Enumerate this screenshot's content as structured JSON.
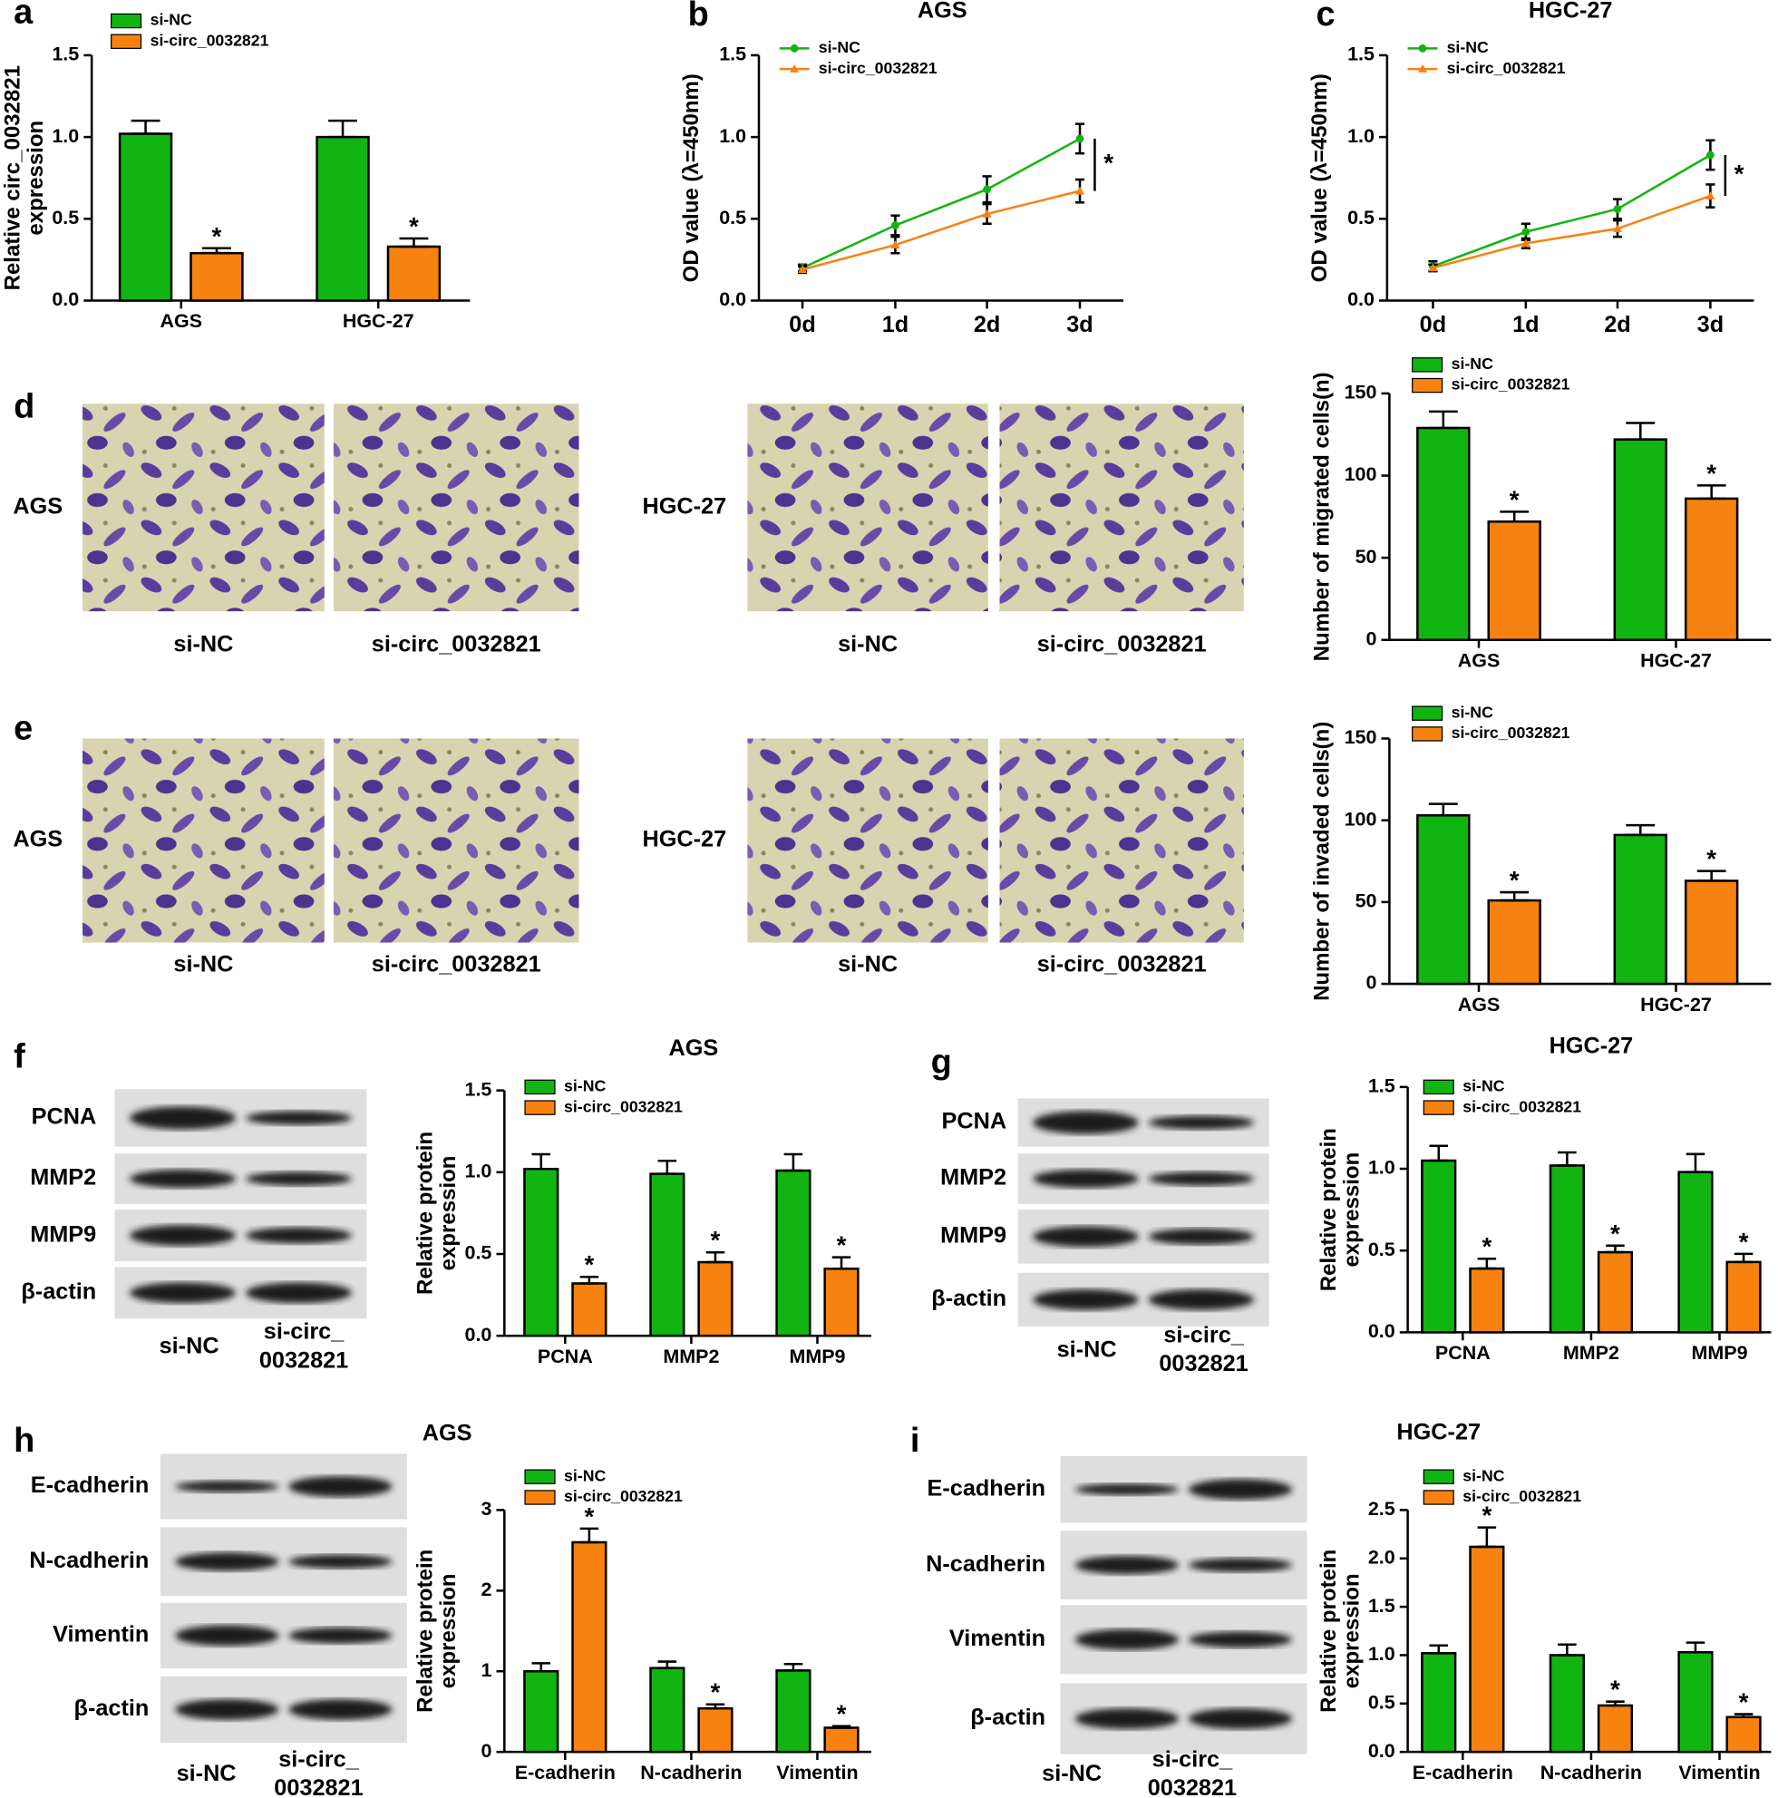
{
  "panel_labels": [
    "a",
    "b",
    "c",
    "d",
    "e",
    "f",
    "g",
    "h",
    "i"
  ],
  "images": {
    "d": {
      "groups": [
        {
          "name": "AGS",
          "columns": [
            "si-NC",
            "si-circ_0032821"
          ]
        },
        {
          "name": "HGC-27",
          "columns": [
            "si-NC",
            "si-circ_0032821"
          ]
        }
      ]
    },
    "e": {
      "groups": [
        {
          "name": "AGS",
          "columns": [
            "si-NC",
            "si-circ_0032821"
          ]
        },
        {
          "name": "HGC-27",
          "columns": [
            "si-NC",
            "si-circ_0032821"
          ]
        }
      ]
    }
  },
  "blots": {
    "f": {
      "rows": [
        "PCNA",
        "MMP2",
        "MMP9",
        "β-actin"
      ],
      "columns": [
        [
          "si-NC"
        ],
        [
          "si-circ_",
          "0032821"
        ]
      ]
    },
    "g": {
      "rows": [
        "PCNA",
        "MMP2",
        "MMP9",
        "β-actin"
      ],
      "columns": [
        [
          "si-NC"
        ],
        [
          "si-circ_",
          "0032821"
        ]
      ]
    },
    "h": {
      "rows": [
        "E-cadherin",
        "N-cadherin",
        "Vimentin",
        "β-actin"
      ],
      "columns": [
        [
          "si-NC"
        ],
        [
          "si-circ_",
          "0032821"
        ]
      ]
    },
    "i": {
      "rows": [
        "E-cadherin",
        "N-cadherin",
        "Vimentin",
        "β-actin"
      ],
      "columns": [
        [
          "si-NC"
        ],
        [
          "si-circ_",
          "0032821"
        ]
      ]
    }
  },
  "chart_data": [
    {
      "type": "bar",
      "categories": [
        "AGS",
        "HGC-27"
      ],
      "y_label": [
        "Relative circ_0032821",
        "expression"
      ],
      "ylim": [
        0,
        1.5
      ],
      "yticks": [
        {
          "value": 0,
          "label": "0.0"
        },
        0.5,
        {
          "value": 1,
          "label": "1.0"
        },
        1.5
      ],
      "series": [
        {
          "name": "si-NC",
          "color": "#11b511",
          "values": [
            1.02,
            1.0
          ],
          "errors": [
            0.08,
            0.1
          ]
        },
        {
          "name": "si-circ_0032821",
          "color": "#f7820f",
          "values": [
            0.29,
            0.33
          ],
          "errors": [
            0.03,
            0.05
          ],
          "labels": [
            "*",
            "*"
          ]
        }
      ]
    },
    {
      "type": "line",
      "title": "AGS",
      "categories": [
        "0d",
        "1d",
        "2d",
        "3d"
      ],
      "y_label": [
        "OD value (λ=450nm)"
      ],
      "annotation": "*",
      "ylim": [
        0,
        1.5
      ],
      "yticks": [
        {
          "value": 0,
          "label": "0.0"
        },
        0.5,
        {
          "value": 1,
          "label": "1.0"
        },
        1.5
      ],
      "series": [
        {
          "name": "si-NC",
          "color": "#11b511",
          "values": [
            0.2,
            0.46,
            0.68,
            0.99
          ],
          "errors": [
            0.02,
            0.06,
            0.08,
            0.09
          ]
        },
        {
          "name": "si-circ_0032821",
          "color": "#f7820f",
          "values": [
            0.19,
            0.34,
            0.53,
            0.67
          ],
          "errors": [
            0.02,
            0.05,
            0.06,
            0.07
          ]
        }
      ]
    },
    {
      "type": "line",
      "title": "HGC-27",
      "categories": [
        "0d",
        "1d",
        "2d",
        "3d"
      ],
      "y_label": [
        "OD value (λ=450nm)"
      ],
      "annotation": "*",
      "ylim": [
        0,
        1.5
      ],
      "yticks": [
        {
          "value": 0,
          "label": "0.0"
        },
        0.5,
        {
          "value": 1,
          "label": "1.0"
        },
        1.5
      ],
      "series": [
        {
          "name": "si-NC",
          "color": "#11b511",
          "values": [
            0.21,
            0.42,
            0.56,
            0.89
          ],
          "errors": [
            0.03,
            0.05,
            0.06,
            0.09
          ]
        },
        {
          "name": "si-circ_0032821",
          "color": "#f7820f",
          "values": [
            0.2,
            0.35,
            0.44,
            0.64
          ],
          "errors": [
            0.02,
            0.03,
            0.05,
            0.07
          ]
        }
      ]
    },
    {
      "type": "bar",
      "categories": [
        "AGS",
        "HGC-27"
      ],
      "y_label": [
        "Number of migrated cells(n)"
      ],
      "ylim": [
        0,
        150
      ],
      "yticks": [
        0,
        50,
        100,
        150
      ],
      "series": [
        {
          "name": "si-NC",
          "color": "#11b511",
          "values": [
            129,
            122
          ],
          "errors": [
            10,
            10
          ]
        },
        {
          "name": "si-circ_0032821",
          "color": "#f7820f",
          "values": [
            72,
            86
          ],
          "errors": [
            6,
            8
          ],
          "labels": [
            "*",
            "*"
          ]
        }
      ]
    },
    {
      "type": "bar",
      "categories": [
        "AGS",
        "HGC-27"
      ],
      "y_label": [
        "Number of invaded cells(n)"
      ],
      "ylim": [
        0,
        150
      ],
      "yticks": [
        0,
        50,
        100,
        150
      ],
      "series": [
        {
          "name": "si-NC",
          "color": "#11b511",
          "values": [
            103,
            91
          ],
          "errors": [
            7,
            6
          ]
        },
        {
          "name": "si-circ_0032821",
          "color": "#f7820f",
          "values": [
            51,
            63
          ],
          "errors": [
            5,
            6
          ],
          "labels": [
            "*",
            "*"
          ]
        }
      ]
    },
    {
      "type": "bar",
      "title": "AGS",
      "categories": [
        "PCNA",
        "MMP2",
        "MMP9"
      ],
      "y_label": [
        "Relative protein",
        "expression"
      ],
      "ylim": [
        0,
        1.5
      ],
      "yticks": [
        {
          "value": 0,
          "label": "0.0"
        },
        0.5,
        {
          "value": 1,
          "label": "1.0"
        },
        1.5
      ],
      "series": [
        {
          "name": "si-NC",
          "color": "#11b511",
          "values": [
            1.02,
            0.99,
            1.01
          ],
          "errors": [
            0.09,
            0.08,
            0.1
          ]
        },
        {
          "name": "si-circ_0032821",
          "color": "#f7820f",
          "values": [
            0.32,
            0.45,
            0.41
          ],
          "errors": [
            0.04,
            0.06,
            0.07
          ],
          "labels": [
            "*",
            "*",
            "*"
          ]
        }
      ]
    },
    {
      "type": "bar",
      "title": "HGC-27",
      "categories": [
        "PCNA",
        "MMP2",
        "MMP9"
      ],
      "y_label": [
        "Relative protein",
        "expression"
      ],
      "ylim": [
        0,
        1.5
      ],
      "yticks": [
        {
          "value": 0,
          "label": "0.0"
        },
        0.5,
        {
          "value": 1,
          "label": "1.0"
        },
        1.5
      ],
      "series": [
        {
          "name": "si-NC",
          "color": "#11b511",
          "values": [
            1.05,
            1.02,
            0.98
          ],
          "errors": [
            0.09,
            0.08,
            0.11
          ]
        },
        {
          "name": "si-circ_0032821",
          "color": "#f7820f",
          "values": [
            0.39,
            0.49,
            0.43
          ],
          "errors": [
            0.06,
            0.04,
            0.05
          ],
          "labels": [
            "*",
            "*",
            "*"
          ]
        }
      ]
    },
    {
      "type": "bar",
      "title": "AGS",
      "categories": [
        "E-cadherin",
        "N-cadherin",
        "Vimentin"
      ],
      "y_label": [
        "Relative protein",
        "expression"
      ],
      "ylim": [
        0,
        3
      ],
      "yticks": [
        0,
        1,
        2,
        3
      ],
      "series": [
        {
          "name": "si-NC",
          "color": "#11b511",
          "values": [
            1.0,
            1.04,
            1.01
          ],
          "errors": [
            0.1,
            0.08,
            0.08
          ]
        },
        {
          "name": "si-circ_0032821",
          "color": "#f7820f",
          "values": [
            2.6,
            0.54,
            0.3
          ],
          "errors": [
            0.17,
            0.05,
            0.02
          ],
          "labels": [
            "*",
            "*",
            "*"
          ]
        }
      ]
    },
    {
      "type": "bar",
      "title": "HGC-27",
      "categories": [
        "E-cadherin",
        "N-cadherin",
        "Vimentin"
      ],
      "y_label": [
        "Relative protein",
        "expression"
      ],
      "ylim": [
        0,
        2.5
      ],
      "yticks": [
        {
          "value": 0,
          "label": "0.0"
        },
        0.5,
        {
          "value": 1,
          "label": "1.0"
        },
        1.5,
        {
          "value": 2,
          "label": "2.0"
        },
        2.5
      ],
      "series": [
        {
          "name": "si-NC",
          "color": "#11b511",
          "values": [
            1.02,
            1.0,
            1.03
          ],
          "errors": [
            0.08,
            0.11,
            0.1
          ]
        },
        {
          "name": "si-circ_0032821",
          "color": "#f7820f",
          "values": [
            2.12,
            0.48,
            0.36
          ],
          "errors": [
            0.2,
            0.04,
            0.03
          ],
          "labels": [
            "*",
            "*",
            "*"
          ]
        }
      ]
    }
  ]
}
